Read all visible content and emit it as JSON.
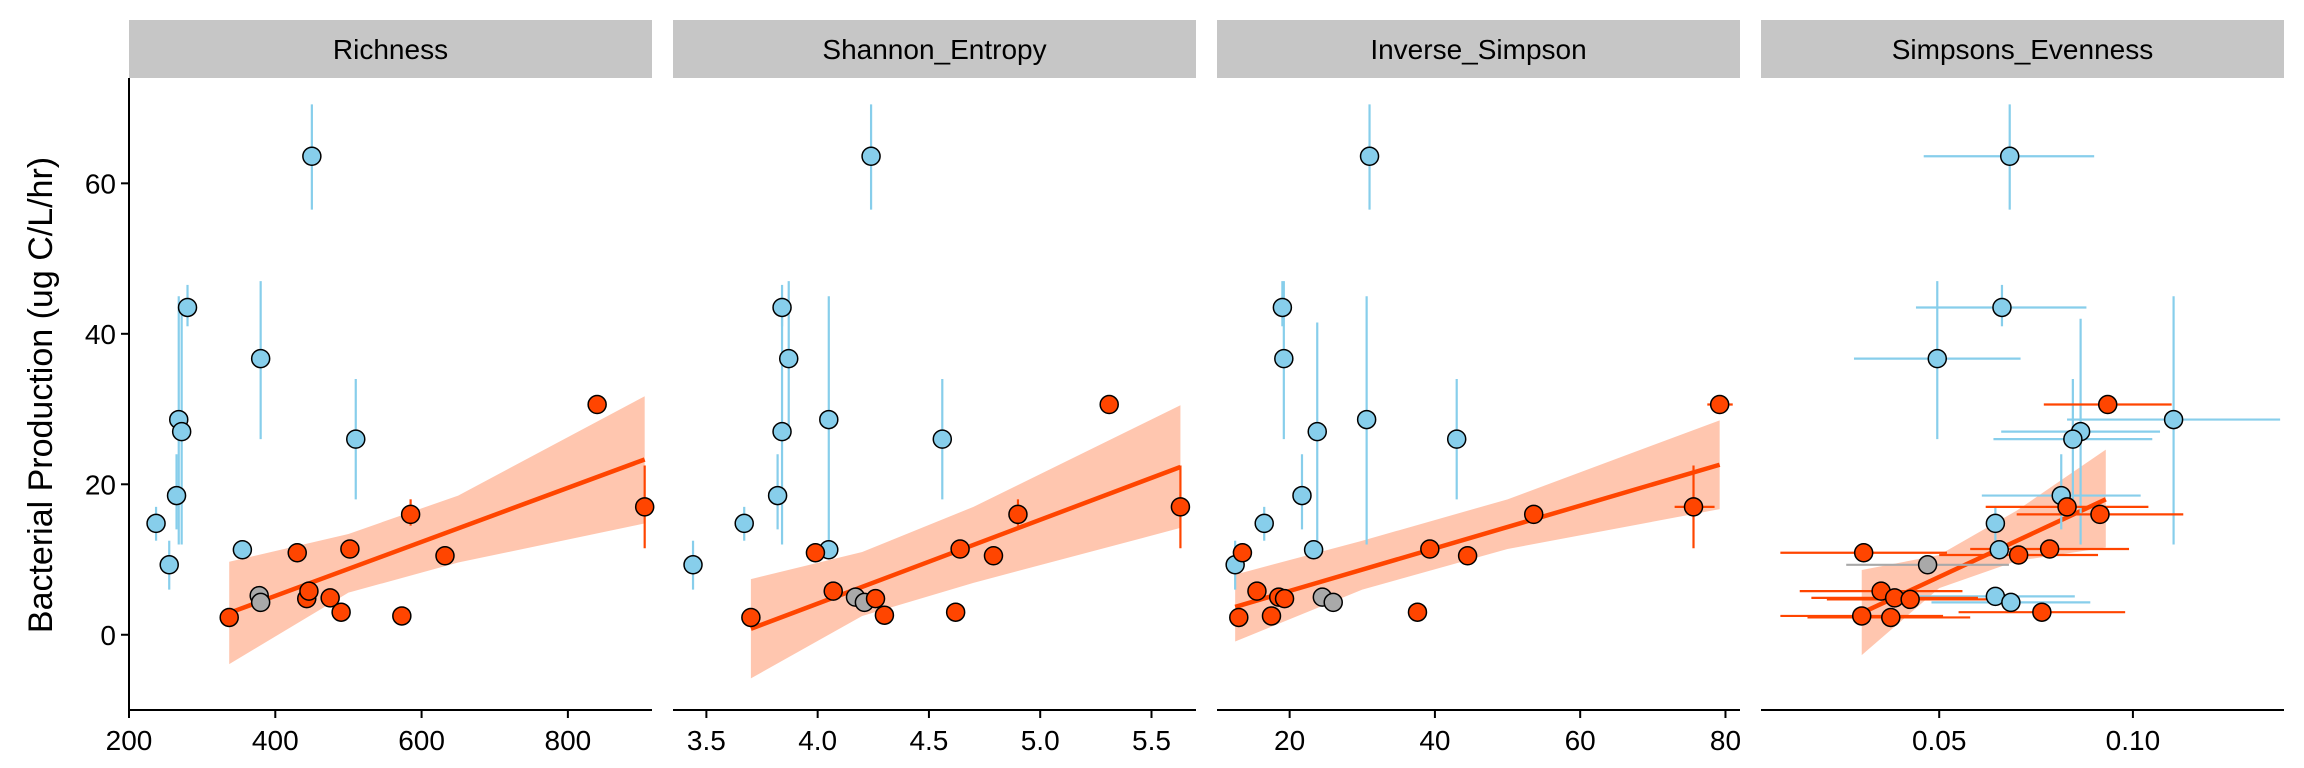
{
  "chart_data": {
    "type": "scatter",
    "ylabel": "Bacterial Production (ug C/L/hr)",
    "ylim": [
      -10,
      74
    ],
    "y_ticks": [
      0,
      20,
      40,
      60
    ],
    "grid": false,
    "colors": {
      "blue_points": "#87ceeb",
      "orange_points": "#ff4500",
      "grey_points": "#a9a9a9",
      "fit_line": "#ff4500",
      "confidence_band": "#ffa07a",
      "strip_background": "#c6c6c6"
    },
    "panels": [
      {
        "name": "Richness",
        "xlim": [
          200,
          915
        ],
        "x_ticks": [
          200,
          400,
          600,
          800
        ],
        "points": [
          {
            "x": 237,
            "y": 14.8,
            "group": "blue",
            "yerr": [
              12.5,
              17
            ]
          },
          {
            "x": 255,
            "y": 9.3,
            "group": "blue",
            "yerr": [
              6,
              12.5
            ]
          },
          {
            "x": 265,
            "y": 18.5,
            "group": "blue",
            "yerr": [
              14,
              24
            ]
          },
          {
            "x": 268,
            "y": 28.6,
            "group": "blue",
            "yerr": [
              12,
              45
            ]
          },
          {
            "x": 272,
            "y": 27.0,
            "group": "blue",
            "yerr": [
              12,
              44
            ]
          },
          {
            "x": 280,
            "y": 43.5,
            "group": "blue",
            "yerr": [
              41,
              46.5
            ]
          },
          {
            "x": 355,
            "y": 11.3,
            "group": "blue"
          },
          {
            "x": 380,
            "y": 36.7,
            "group": "blue",
            "yerr": [
              26,
              47
            ]
          },
          {
            "x": 450,
            "y": 63.6,
            "group": "blue",
            "yerr": [
              56.5,
              70.5
            ]
          },
          {
            "x": 510,
            "y": 26.0,
            "group": "blue",
            "yerr": [
              18,
              34
            ]
          },
          {
            "x": 337,
            "y": 2.3,
            "group": "orange"
          },
          {
            "x": 378,
            "y": 5.2,
            "group": "grey"
          },
          {
            "x": 380,
            "y": 4.3,
            "group": "grey"
          },
          {
            "x": 430,
            "y": 10.9,
            "group": "orange"
          },
          {
            "x": 443,
            "y": 4.8,
            "group": "orange"
          },
          {
            "x": 446,
            "y": 5.8,
            "group": "orange"
          },
          {
            "x": 475,
            "y": 4.9,
            "group": "orange"
          },
          {
            "x": 490,
            "y": 3.0,
            "group": "orange"
          },
          {
            "x": 502,
            "y": 11.4,
            "group": "orange"
          },
          {
            "x": 573,
            "y": 2.5,
            "group": "orange"
          },
          {
            "x": 585,
            "y": 16.0,
            "group": "orange",
            "yerr": [
              14.5,
              18
            ]
          },
          {
            "x": 632,
            "y": 10.5,
            "group": "orange"
          },
          {
            "x": 840,
            "y": 30.6,
            "group": "orange"
          },
          {
            "x": 905,
            "y": 17.0,
            "group": "orange",
            "yerr": [
              11.5,
              22.5
            ]
          }
        ],
        "fit": {
          "x": [
            337,
            905
          ],
          "y": [
            2.9,
            23.3
          ],
          "band_x": [
            337,
            500,
            650,
            905
          ],
          "band_lower": [
            -3.9,
            5.6,
            9.6,
            14.8
          ],
          "band_upper": [
            9.7,
            13.4,
            18.5,
            31.7
          ]
        }
      },
      {
        "name": "Shannon_Entropy",
        "xlim": [
          3.35,
          5.7
        ],
        "x_ticks": [
          3.5,
          4.0,
          4.5,
          5.0,
          5.5
        ],
        "x_tick_labels": [
          "3.5",
          "4.0",
          "4.5",
          "5.0",
          "5.5"
        ],
        "points": [
          {
            "x": 3.44,
            "y": 9.3,
            "group": "blue",
            "yerr": [
              6,
              12.5
            ]
          },
          {
            "x": 3.67,
            "y": 14.8,
            "group": "blue",
            "yerr": [
              12.5,
              17
            ]
          },
          {
            "x": 3.82,
            "y": 18.5,
            "group": "blue",
            "yerr": [
              14,
              24
            ]
          },
          {
            "x": 3.84,
            "y": 27.0,
            "group": "blue",
            "yerr": [
              12,
              44
            ]
          },
          {
            "x": 3.84,
            "y": 43.5,
            "group": "blue",
            "yerr": [
              41,
              46.5
            ]
          },
          {
            "x": 3.87,
            "y": 36.7,
            "group": "blue",
            "yerr": [
              26,
              47
            ]
          },
          {
            "x": 4.05,
            "y": 11.3,
            "group": "blue"
          },
          {
            "x": 4.05,
            "y": 28.6,
            "group": "blue",
            "yerr": [
              12,
              45
            ]
          },
          {
            "x": 4.24,
            "y": 63.6,
            "group": "blue",
            "yerr": [
              56.5,
              70.5
            ]
          },
          {
            "x": 4.56,
            "y": 26.0,
            "group": "blue",
            "yerr": [
              18,
              34
            ]
          },
          {
            "x": 3.7,
            "y": 2.3,
            "group": "orange"
          },
          {
            "x": 3.99,
            "y": 10.9,
            "group": "orange"
          },
          {
            "x": 4.07,
            "y": 5.8,
            "group": "orange"
          },
          {
            "x": 4.17,
            "y": 5.0,
            "group": "grey"
          },
          {
            "x": 4.21,
            "y": 4.3,
            "group": "grey"
          },
          {
            "x": 4.26,
            "y": 4.8,
            "group": "orange"
          },
          {
            "x": 4.3,
            "y": 2.6,
            "group": "orange"
          },
          {
            "x": 4.62,
            "y": 3.0,
            "group": "orange"
          },
          {
            "x": 4.64,
            "y": 11.4,
            "group": "orange"
          },
          {
            "x": 4.79,
            "y": 10.5,
            "group": "orange"
          },
          {
            "x": 4.9,
            "y": 16.0,
            "group": "orange",
            "yerr": [
              14.5,
              18
            ]
          },
          {
            "x": 5.31,
            "y": 30.6,
            "group": "orange"
          },
          {
            "x": 5.63,
            "y": 17.0,
            "group": "orange",
            "yerr": [
              11.5,
              22.5
            ]
          }
        ],
        "fit": {
          "x": [
            3.7,
            5.63
          ],
          "y": [
            0.8,
            22.3
          ],
          "band_x": [
            3.7,
            4.2,
            4.7,
            5.63
          ],
          "band_lower": [
            -5.8,
            2.5,
            6.9,
            14.2
          ],
          "band_upper": [
            7.4,
            11.0,
            17.0,
            30.5
          ]
        }
      },
      {
        "name": "Inverse_Simpson",
        "xlim": [
          10,
          82
        ],
        "x_ticks": [
          20,
          40,
          60,
          80
        ],
        "points": [
          {
            "x": 12.5,
            "y": 9.3,
            "group": "blue",
            "yerr": [
              6,
              12.5
            ]
          },
          {
            "x": 16.5,
            "y": 14.8,
            "group": "blue",
            "yerr": [
              12.5,
              17
            ]
          },
          {
            "x": 19.0,
            "y": 43.5,
            "group": "blue",
            "yerr": [
              41,
              47
            ]
          },
          {
            "x": 19.2,
            "y": 36.7,
            "group": "blue",
            "yerr": [
              26,
              47
            ]
          },
          {
            "x": 21.7,
            "y": 18.5,
            "group": "blue",
            "yerr": [
              14,
              24
            ]
          },
          {
            "x": 23.3,
            "y": 11.3,
            "group": "blue"
          },
          {
            "x": 23.8,
            "y": 27.0,
            "group": "blue",
            "yerr": [
              12,
              41.5
            ]
          },
          {
            "x": 30.6,
            "y": 28.6,
            "group": "blue",
            "yerr": [
              12,
              45
            ]
          },
          {
            "x": 31.0,
            "y": 63.6,
            "group": "blue",
            "yerr": [
              56.5,
              70.5
            ]
          },
          {
            "x": 43.0,
            "y": 26.0,
            "group": "blue",
            "yerr": [
              18,
              34
            ]
          },
          {
            "x": 13.0,
            "y": 2.3,
            "group": "orange"
          },
          {
            "x": 13.5,
            "y": 10.9,
            "group": "orange"
          },
          {
            "x": 15.5,
            "y": 5.8,
            "group": "orange"
          },
          {
            "x": 17.5,
            "y": 2.5,
            "group": "orange"
          },
          {
            "x": 18.5,
            "y": 5.0,
            "group": "orange"
          },
          {
            "x": 19.3,
            "y": 4.8,
            "group": "orange"
          },
          {
            "x": 24.5,
            "y": 5.0,
            "group": "grey"
          },
          {
            "x": 26.0,
            "y": 4.3,
            "group": "grey"
          },
          {
            "x": 37.6,
            "y": 3.0,
            "group": "orange"
          },
          {
            "x": 39.3,
            "y": 11.4,
            "group": "orange"
          },
          {
            "x": 44.5,
            "y": 10.5,
            "group": "orange"
          },
          {
            "x": 53.6,
            "y": 16.0,
            "group": "orange"
          },
          {
            "x": 75.6,
            "y": 17.0,
            "group": "orange",
            "yerr": [
              11.5,
              22.5
            ],
            "xerr": [
              73,
              78.5
            ]
          },
          {
            "x": 79.2,
            "y": 30.6,
            "group": "orange",
            "xerr": [
              77.5,
              81
            ]
          }
        ],
        "fit": {
          "x": [
            12.5,
            79.2
          ],
          "y": [
            3.7,
            22.6
          ],
          "band_x": [
            12.5,
            30,
            50,
            79.2
          ],
          "band_lower": [
            -0.9,
            6.0,
            11.4,
            16.7
          ],
          "band_upper": [
            8.0,
            12.5,
            18.0,
            28.5
          ]
        }
      },
      {
        "name": "Simpsons_Evenness",
        "xlim": [
          0.004,
          0.139
        ],
        "x_ticks": [
          0.05,
          0.1
        ],
        "x_tick_labels": [
          "0.05",
          "0.10"
        ],
        "points": [
          {
            "x": 0.0682,
            "y": 63.6,
            "group": "blue",
            "xerr": [
              0.046,
              0.09
            ],
            "yerr": [
              56.5,
              70.5
            ]
          },
          {
            "x": 0.0662,
            "y": 43.5,
            "group": "blue",
            "xerr": [
              0.044,
              0.088
            ],
            "yerr": [
              41,
              46.5
            ]
          },
          {
            "x": 0.0495,
            "y": 36.7,
            "group": "blue",
            "xerr": [
              0.028,
              0.071
            ],
            "yerr": [
              26,
              47
            ]
          },
          {
            "x": 0.1105,
            "y": 28.6,
            "group": "blue",
            "xerr": [
              0.083,
              0.138
            ],
            "yerr": [
              12,
              45
            ]
          },
          {
            "x": 0.0865,
            "y": 27.0,
            "group": "blue",
            "xerr": [
              0.066,
              0.107
            ],
            "yerr": [
              12,
              42
            ]
          },
          {
            "x": 0.0845,
            "y": 26.0,
            "group": "blue",
            "xerr": [
              0.064,
              0.105
            ],
            "yerr": [
              18,
              34
            ]
          },
          {
            "x": 0.0815,
            "y": 18.5,
            "group": "blue",
            "xerr": [
              0.061,
              0.102
            ],
            "yerr": [
              14,
              24
            ]
          },
          {
            "x": 0.0645,
            "y": 14.8,
            "group": "blue",
            "yerr": [
              12.5,
              17
            ]
          },
          {
            "x": 0.0655,
            "y": 11.3,
            "group": "blue"
          },
          {
            "x": 0.0645,
            "y": 5.1,
            "group": "blue",
            "xerr": [
              0.044,
              0.085
            ]
          },
          {
            "x": 0.0685,
            "y": 4.3,
            "group": "blue",
            "xerr": [
              0.048,
              0.089
            ]
          },
          {
            "x": 0.0305,
            "y": 10.9,
            "group": "orange",
            "xerr": [
              0.009,
              0.052
            ]
          },
          {
            "x": 0.035,
            "y": 5.8,
            "group": "orange",
            "xerr": [
              0.014,
              0.056
            ]
          },
          {
            "x": 0.0375,
            "y": 2.3,
            "group": "orange",
            "xerr": [
              0.016,
              0.058
            ]
          },
          {
            "x": 0.03,
            "y": 2.5,
            "group": "orange",
            "xerr": [
              0.009,
              0.051
            ]
          },
          {
            "x": 0.0385,
            "y": 4.9,
            "group": "orange",
            "xerr": [
              0.017,
              0.06
            ]
          },
          {
            "x": 0.0425,
            "y": 4.7,
            "group": "orange",
            "xerr": [
              0.021,
              0.064
            ]
          },
          {
            "x": 0.047,
            "y": 9.3,
            "group": "grey",
            "xerr": [
              0.026,
              0.068
            ]
          },
          {
            "x": 0.0705,
            "y": 10.6,
            "group": "orange",
            "xerr": [
              0.05,
              0.091
            ]
          },
          {
            "x": 0.0765,
            "y": 3.0,
            "group": "orange",
            "xerr": [
              0.055,
              0.098
            ]
          },
          {
            "x": 0.0785,
            "y": 11.4,
            "group": "orange",
            "xerr": [
              0.058,
              0.099
            ]
          },
          {
            "x": 0.083,
            "y": 17.0,
            "group": "orange",
            "xerr": [
              0.062,
              0.104
            ]
          },
          {
            "x": 0.0915,
            "y": 16.0,
            "group": "orange",
            "xerr": [
              0.07,
              0.113
            ]
          },
          {
            "x": 0.0935,
            "y": 30.6,
            "group": "orange",
            "xerr": [
              0.077,
              0.11
            ]
          }
        ],
        "fit": {
          "x": [
            0.03,
            0.093
          ],
          "y": [
            2.9,
            18.0
          ],
          "band_x": [
            0.03,
            0.05,
            0.07,
            0.093
          ],
          "band_lower": [
            -2.7,
            6.2,
            9.8,
            11.6
          ],
          "band_upper": [
            8.6,
            10.6,
            16.5,
            24.6
          ]
        }
      }
    ]
  }
}
